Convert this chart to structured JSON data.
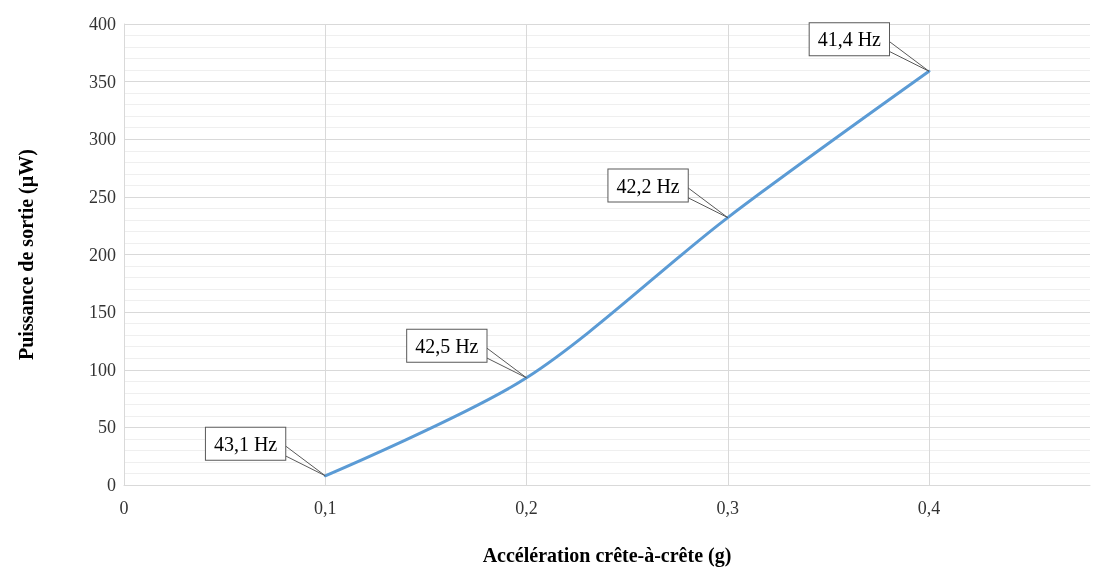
{
  "chart_data": {
    "type": "line",
    "xlabel": "Accélération crête-à-crête (g)",
    "ylabel": "Puissance de sortie (µW)",
    "x": [
      0.1,
      0.2,
      0.3,
      0.4
    ],
    "series": [
      {
        "color": "#5b9bd5",
        "values": [
          8,
          93,
          232,
          359
        ]
      }
    ],
    "xlim": [
      0,
      0.48
    ],
    "xticks": [
      0,
      {
        "value": 0.1,
        "label": "0,1"
      },
      {
        "value": 0.2,
        "label": "0,2"
      },
      {
        "value": 0.3,
        "label": "0,3"
      },
      {
        "value": 0.4,
        "label": "0,4"
      }
    ],
    "ylim": [
      0,
      400
    ],
    "yticks": [
      0,
      50,
      100,
      150,
      200,
      250,
      300,
      350,
      400
    ],
    "annotations": [
      {
        "text": "43,1 Hz",
        "x": 0.1,
        "y": 8
      },
      {
        "text": "42,5 Hz",
        "x": 0.2,
        "y": 93
      },
      {
        "text": "42,2 Hz",
        "x": 0.3,
        "y": 232
      },
      {
        "text": "41,4 Hz",
        "x": 0.4,
        "y": 359
      }
    ],
    "grid": true,
    "marker": "none",
    "line_style": "solid"
  }
}
